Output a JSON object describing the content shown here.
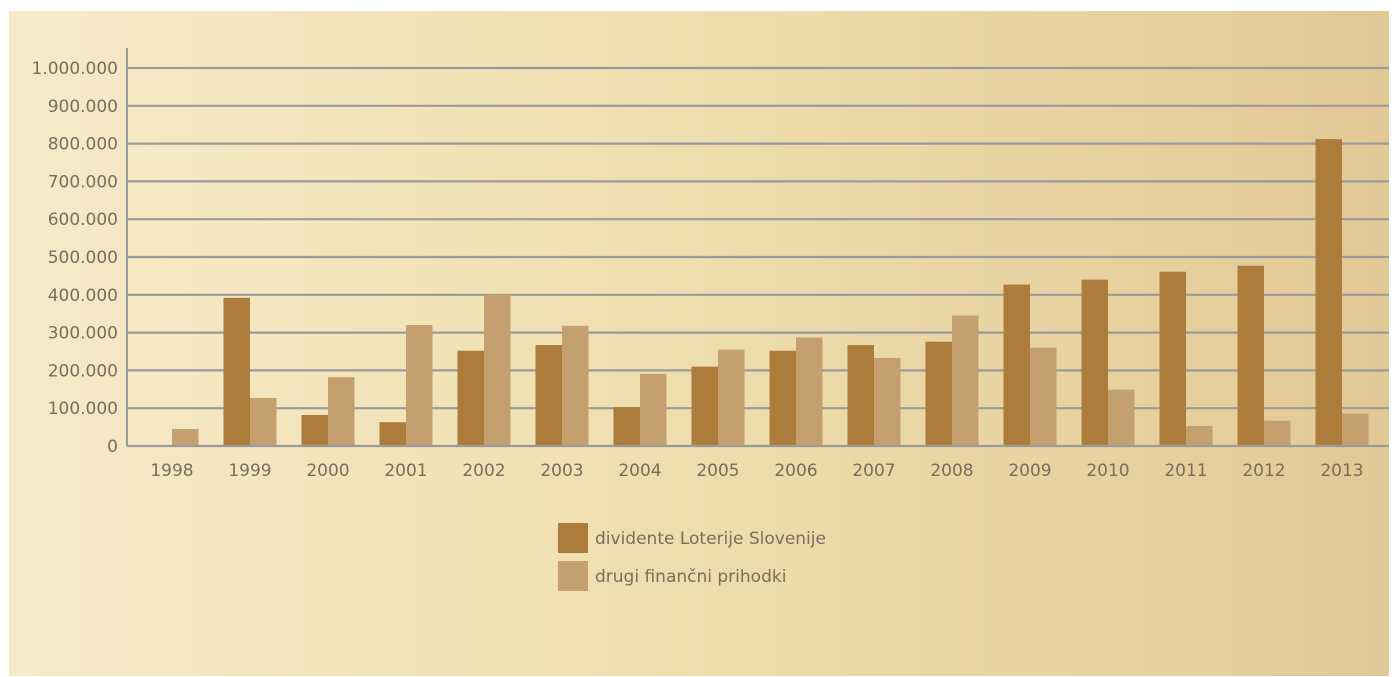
{
  "chart_data": {
    "type": "bar",
    "title": "",
    "xlabel": "",
    "ylabel": "",
    "ylim": [
      0,
      1000000
    ],
    "yticks": [
      0,
      100000,
      200000,
      300000,
      400000,
      500000,
      600000,
      700000,
      800000,
      900000,
      1000000
    ],
    "ytick_labels": [
      "0",
      "100.000",
      "200.000",
      "300.000",
      "400.000",
      "500.000",
      "600.000",
      "700.000",
      "800.000",
      "900.000",
      "1.000.000"
    ],
    "grid": true,
    "legend_position": "bottom-center",
    "categories": [
      "1998",
      "1999",
      "2000",
      "2001",
      "2002",
      "2003",
      "2004",
      "2005",
      "2006",
      "2007",
      "2008",
      "2009",
      "2010",
      "2011",
      "2012",
      "2013"
    ],
    "series": [
      {
        "name": "dividente Loterije Slovenije",
        "color": "#ad7c3b",
        "values": [
          0,
          392000,
          82000,
          63000,
          252000,
          267000,
          103000,
          210000,
          252000,
          267000,
          276000,
          427000,
          440000,
          461000,
          477000,
          812000
        ]
      },
      {
        "name": "drugi finančni prihodki",
        "color": "#c4a06f",
        "values": [
          45000,
          127000,
          182000,
          320000,
          401000,
          318000,
          191000,
          255000,
          287000,
          233000,
          345000,
          260000,
          149000,
          53000,
          67000,
          86000
        ]
      }
    ]
  },
  "colors": {
    "grid": "#9a9a9a",
    "axis": "#9a9a9a",
    "text": "#7a6e5b"
  }
}
